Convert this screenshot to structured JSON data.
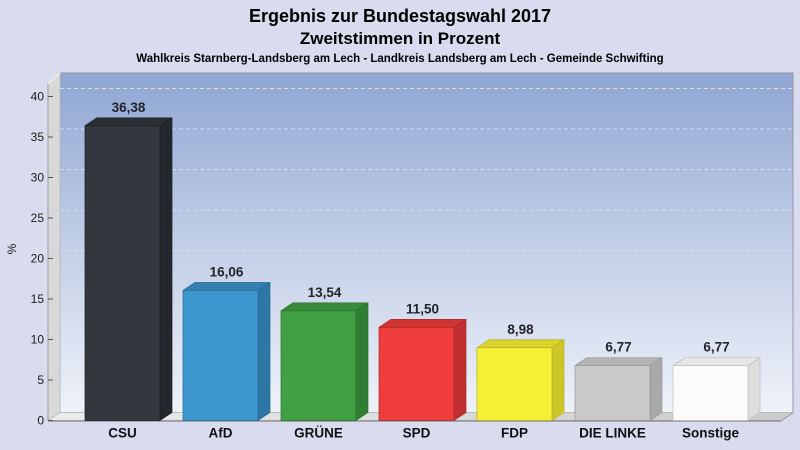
{
  "title_block": {
    "line1": "Ergebnis zur Bundestagswahl 2017",
    "line2": "Zweitstimmen in Prozent",
    "line3": "Wahlkreis Starnberg-Landsberg am Lech - Landkreis Landsberg am Lech - Gemeinde Schwifting"
  },
  "chart_data": {
    "type": "bar",
    "style": "3d-vertical-bars",
    "title": "Ergebnis zur Bundestagswahl 2017",
    "subtitle": "Zweitstimmen in Prozent",
    "caption": "Wahlkreis Starnberg-Landsberg am Lech - Landkreis Landsberg am Lech - Gemeinde Schwifting",
    "xlabel": "",
    "ylabel": "%",
    "ylim": [
      0,
      42
    ],
    "yticks": [
      0,
      5,
      10,
      15,
      20,
      25,
      30,
      35,
      40
    ],
    "grid": "horizontal-dashed",
    "legend": "none",
    "categories": [
      "CSU",
      "AfD",
      "GRÜNE",
      "SPD",
      "FDP",
      "DIE LINKE",
      "Sonstige"
    ],
    "values": [
      36.38,
      16.06,
      13.54,
      11.5,
      8.98,
      6.77,
      6.77
    ],
    "value_labels": [
      "36,38",
      "16,06",
      "13,54",
      "11,50",
      "8,98",
      "6,77",
      "6,77"
    ],
    "bars": [
      {
        "label": "CSU",
        "value": 36.38,
        "display": "36,38",
        "front": "#33383e",
        "top": "#2a2f35",
        "side": "#24282e",
        "edge": "#1b1e23"
      },
      {
        "label": "AfD",
        "value": 16.06,
        "display": "16,06",
        "front": "#3b97cd",
        "top": "#347fb0",
        "side": "#2d77a5",
        "edge": "#266a94"
      },
      {
        "label": "GRÜNE",
        "value": 13.54,
        "display": "13,54",
        "front": "#41a044",
        "top": "#378a3a",
        "side": "#2f7e34",
        "edge": "#2a6f2e"
      },
      {
        "label": "SPD",
        "value": 11.5,
        "display": "11,50",
        "front": "#ee3d3c",
        "top": "#d23434",
        "side": "#c02f2f",
        "edge": "#a82a2a"
      },
      {
        "label": "FDP",
        "value": 8.98,
        "display": "8,98",
        "front": "#f5ef35",
        "top": "#d9d32c",
        "side": "#ccc629",
        "edge": "#b5b024"
      },
      {
        "label": "DIE LINKE",
        "value": 6.77,
        "display": "6,77",
        "front": "#c9c9c9",
        "top": "#b4b4b4",
        "side": "#a9a9a9",
        "edge": "#979797"
      },
      {
        "label": "Sonstige",
        "value": 6.77,
        "display": "6,77",
        "front": "#fbfbfb",
        "top": "#e6e6e6",
        "side": "#dddddd",
        "edge": "#bfbfbf"
      }
    ]
  },
  "colors": {
    "page_bg": "#d9dcee",
    "plot_top": "#8fa6d3",
    "plot_mid": "#c2cee7",
    "plot_bottom": "#eef2f9",
    "plot_border": "#9598a3",
    "wall": "#d9d9d9",
    "wall_edge": "#bcbcbc",
    "wall_highlight": "#f2f2f2",
    "floor_left": "#ececec",
    "floor_right": "#cbcbcb",
    "grid": "#d9deeb",
    "wall_grid": "#c6c6c6",
    "axis_line": "#9b9b9b",
    "baseline": "#6f6f6f",
    "tick": "#555555",
    "tick_text": "#1a1a1a",
    "value_text": "#22242a",
    "category_text": "#101014"
  }
}
